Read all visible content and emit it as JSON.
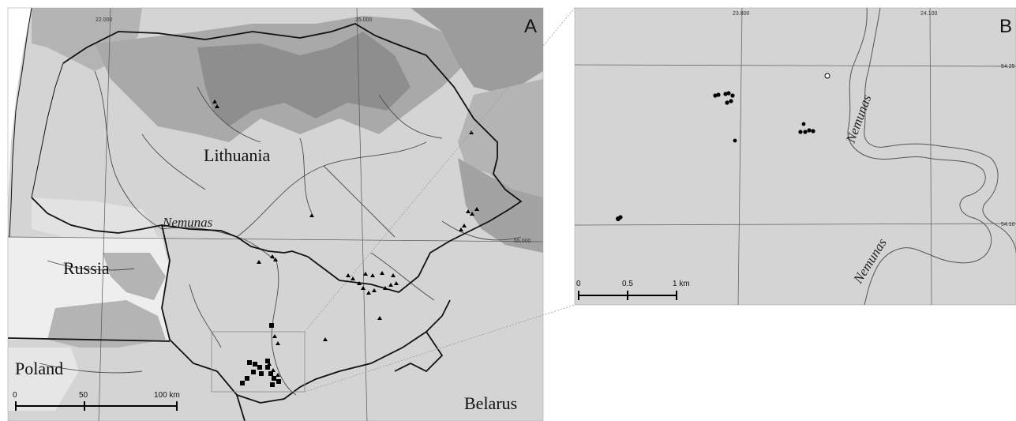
{
  "panel_a": {
    "letter": "A",
    "labels": {
      "lithuania": "Lithuania",
      "russia": "Russia",
      "poland": "Poland",
      "belarus": "Belarus",
      "river": "Nemunas"
    },
    "grid": {
      "lon_1": "22.000",
      "lon_2": "25.000",
      "lat_1": "55.000"
    },
    "scale": {
      "tick_0": "0",
      "tick_1": "50",
      "tick_2": "100 km"
    },
    "marker_types": [
      "triangle",
      "square"
    ]
  },
  "panel_b": {
    "letter": "B",
    "labels": {
      "river_1": "Nemunas",
      "river_2": "Nemunas"
    },
    "grid": {
      "lon_1": "23.800",
      "lon_2": "24.100",
      "lat_1": "54.25",
      "lat_2": "54.10"
    },
    "scale": {
      "tick_0": "0",
      "tick_1": "0.5",
      "tick_2": "1 km"
    },
    "marker_types": [
      "filled-circle",
      "open-circle"
    ]
  },
  "colors": {
    "land_light": "#d4d4d4",
    "land_white": "#f0f0f0",
    "basin_mid": "#b4b4b4",
    "basin_dark": "#8e8e8e",
    "border": "#111111",
    "river": "#4a4a4a"
  }
}
